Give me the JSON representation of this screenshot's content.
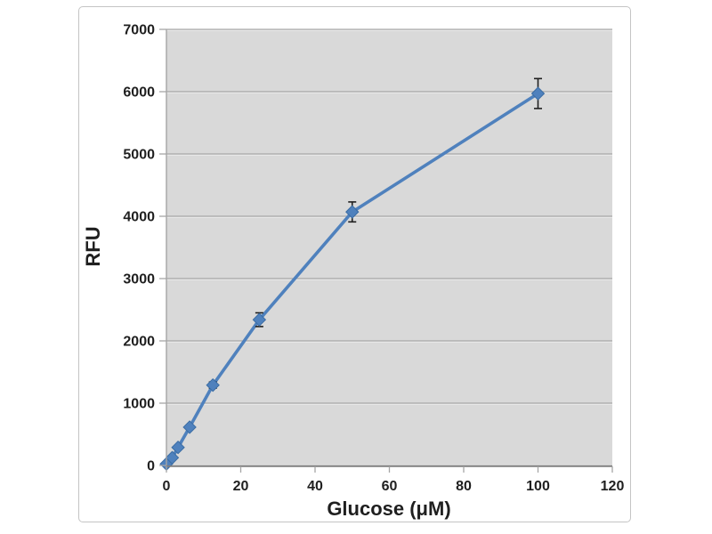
{
  "chart_data": {
    "type": "line",
    "title": "",
    "xlabel": "Glucose (μM)",
    "ylabel": "RFU",
    "x": [
      0,
      1.56,
      3.13,
      6.25,
      12.5,
      25,
      50,
      100
    ],
    "y": [
      25,
      125,
      290,
      615,
      1290,
      2340,
      4070,
      5970
    ],
    "yerr": [
      10,
      15,
      20,
      30,
      50,
      110,
      160,
      240
    ],
    "xlim": [
      0,
      120
    ],
    "ylim": [
      0,
      7000
    ],
    "x_ticks": [
      0,
      20,
      40,
      60,
      80,
      100,
      120
    ],
    "y_ticks": [
      0,
      1000,
      2000,
      3000,
      4000,
      5000,
      6000,
      7000
    ],
    "grid": "horizontal-only",
    "legend": "none",
    "marker": "diamond",
    "colors": {
      "series": "#4f81bd",
      "marker_edge": "#3a6ca3",
      "plot_bg": "#d9d9d9",
      "gridline": "#a6a6a6",
      "gridline_highlight": "#f2f2f2",
      "axis_line": "#7f7f7f",
      "tick_mark": "#a6a6a6",
      "error_bar": "#1f1f1f",
      "text": "#1f1f1f",
      "frame_border": "#c4c4c4",
      "background": "#ffffff"
    }
  }
}
